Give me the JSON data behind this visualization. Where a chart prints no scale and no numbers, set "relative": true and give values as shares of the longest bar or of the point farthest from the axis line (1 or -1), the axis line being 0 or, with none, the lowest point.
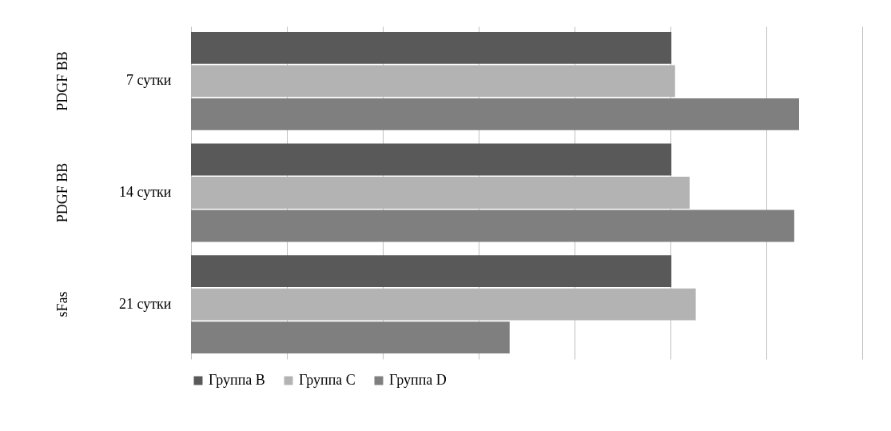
{
  "chart_data": {
    "type": "bar",
    "orientation": "horizontal",
    "relative": true,
    "grid": "x",
    "legend": "bottom",
    "categories": [
      "7 сутки",
      "14 сутки",
      "21 сутки"
    ],
    "series": [
      {
        "name": "Группа B",
        "color": "#595959",
        "values": [
          0.79,
          0.79,
          0.79
        ]
      },
      {
        "name": "Группа C",
        "color": "#b3b3b3",
        "values": [
          0.796,
          0.82,
          0.83
        ]
      },
      {
        "name": "Группа D",
        "color": "#7f7f7f",
        "values": [
          1.0,
          0.992,
          0.524
        ]
      }
    ],
    "annotations": [
      "PDGF BB",
      "PDGF BB",
      "sFas"
    ]
  }
}
